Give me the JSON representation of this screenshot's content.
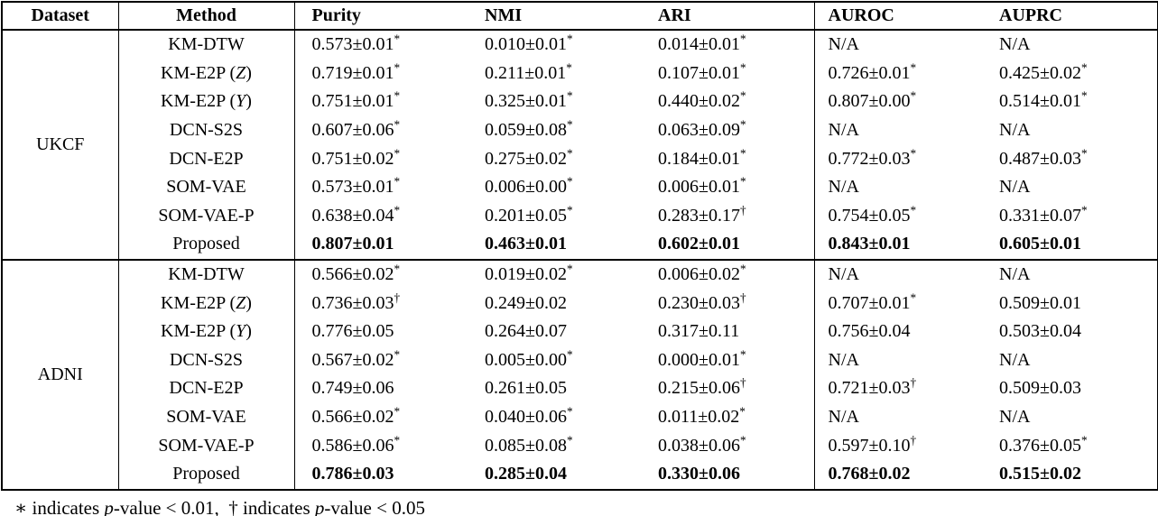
{
  "table": {
    "columns": [
      "Dataset",
      "Method",
      "Purity",
      "NMI",
      "ARI",
      "AUROC",
      "AUPRC"
    ],
    "sections": [
      {
        "dataset": "UKCF",
        "rows": [
          {
            "method": "KM-DTW",
            "bold": false,
            "values": [
              "0.573±0.01*",
              "0.010±0.01*",
              "0.014±0.01*",
              "N/A",
              "N/A"
            ]
          },
          {
            "method": "KM-E2P (𝒵)",
            "bold": false,
            "values": [
              "0.719±0.01*",
              "0.211±0.01*",
              "0.107±0.01*",
              "0.726±0.01*",
              "0.425±0.02*"
            ]
          },
          {
            "method": "KM-E2P (𝒴)",
            "bold": false,
            "values": [
              "0.751±0.01*",
              "0.325±0.01*",
              "0.440±0.02*",
              "0.807±0.00*",
              "0.514±0.01*"
            ]
          },
          {
            "method": "DCN-S2S",
            "bold": false,
            "values": [
              "0.607±0.06*",
              "0.059±0.08*",
              "0.063±0.09*",
              "N/A",
              "N/A"
            ]
          },
          {
            "method": "DCN-E2P",
            "bold": false,
            "values": [
              "0.751±0.02*",
              "0.275±0.02*",
              "0.184±0.01*",
              "0.772±0.03*",
              "0.487±0.03*"
            ]
          },
          {
            "method": "SOM-VAE",
            "bold": false,
            "values": [
              "0.573±0.01*",
              "0.006±0.00*",
              "0.006±0.01*",
              "N/A",
              "N/A"
            ]
          },
          {
            "method": "SOM-VAE-P",
            "bold": false,
            "values": [
              "0.638±0.04*",
              "0.201±0.05*",
              "0.283±0.17†",
              "0.754±0.05*",
              "0.331±0.07*"
            ]
          },
          {
            "method": "Proposed",
            "bold": true,
            "values": [
              "0.807±0.01",
              "0.463±0.01",
              "0.602±0.01",
              "0.843±0.01",
              "0.605±0.01"
            ]
          }
        ]
      },
      {
        "dataset": "ADNI",
        "rows": [
          {
            "method": "KM-DTW",
            "bold": false,
            "values": [
              "0.566±0.02*",
              "0.019±0.02*",
              "0.006±0.02*",
              "N/A",
              "N/A"
            ]
          },
          {
            "method": "KM-E2P (𝒵)",
            "bold": false,
            "values": [
              "0.736±0.03†",
              "0.249±0.02",
              "0.230±0.03†",
              "0.707±0.01*",
              "0.509±0.01"
            ]
          },
          {
            "method": "KM-E2P (𝒴)",
            "bold": false,
            "values": [
              "0.776±0.05",
              "0.264±0.07",
              "0.317±0.11",
              "0.756±0.04",
              "0.503±0.04"
            ]
          },
          {
            "method": "DCN-S2S",
            "bold": false,
            "values": [
              "0.567±0.02*",
              "0.005±0.00*",
              "0.000±0.01*",
              "N/A",
              "N/A"
            ]
          },
          {
            "method": "DCN-E2P",
            "bold": false,
            "values": [
              "0.749±0.06",
              "0.261±0.05",
              "0.215±0.06†",
              "0.721±0.03†",
              "0.509±0.03"
            ]
          },
          {
            "method": "SOM-VAE",
            "bold": false,
            "values": [
              "0.566±0.02*",
              "0.040±0.06*",
              "0.011±0.02*",
              "N/A",
              "N/A"
            ]
          },
          {
            "method": "SOM-VAE-P",
            "bold": false,
            "values": [
              "0.586±0.06*",
              "0.085±0.08*",
              "0.038±0.06*",
              "0.597±0.10†",
              "0.376±0.05*"
            ]
          },
          {
            "method": "Proposed",
            "bold": true,
            "values": [
              "0.786±0.03",
              "0.285±0.04",
              "0.330±0.06",
              "0.768±0.02",
              "0.515±0.02"
            ]
          }
        ]
      }
    ],
    "footnote_parts": [
      {
        "text": "∗ indicates "
      },
      {
        "text": "p",
        "italic": true
      },
      {
        "text": "-value < 0.01,  "
      },
      {
        "text": "† indicates "
      },
      {
        "text": "p",
        "italic": true
      },
      {
        "text": "-value < 0.05"
      }
    ]
  }
}
